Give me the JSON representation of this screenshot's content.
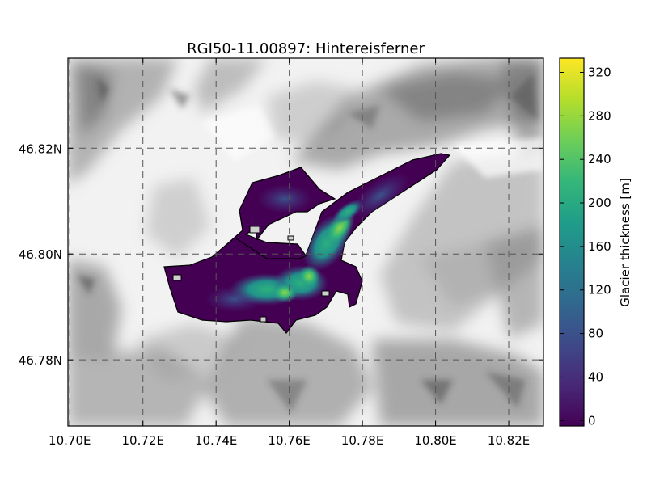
{
  "map": {
    "title": "RGI50-11.00897: Hintereisferner",
    "x_ticks": [
      {
        "value": 10.7,
        "label": "10.70E"
      },
      {
        "value": 10.72,
        "label": "10.72E"
      },
      {
        "value": 10.74,
        "label": "10.74E"
      },
      {
        "value": 10.76,
        "label": "10.76E"
      },
      {
        "value": 10.78,
        "label": "10.78E"
      },
      {
        "value": 10.8,
        "label": "10.80E"
      },
      {
        "value": 10.82,
        "label": "10.82E"
      }
    ],
    "y_ticks": [
      {
        "value": 46.82,
        "label": "46.82N"
      },
      {
        "value": 46.8,
        "label": "46.80N"
      },
      {
        "value": 46.78,
        "label": "46.78N"
      }
    ],
    "x_range": [
      10.6995,
      10.8295
    ],
    "y_range": [
      46.7675,
      46.837
    ],
    "grid": "dashed",
    "basemap": "grayscale-hillshade",
    "colorbar": {
      "label": "Glacier thickness [m]",
      "colormap": "viridis",
      "range": [
        -5,
        333
      ],
      "ticks": [
        0,
        40,
        80,
        120,
        160,
        200,
        240,
        280,
        320
      ],
      "colors": [
        "#440154",
        "#482878",
        "#3e4989",
        "#31688e",
        "#26828e",
        "#1f9e89",
        "#35b779",
        "#6ece58",
        "#b5de2b",
        "#fde725"
      ]
    }
  }
}
